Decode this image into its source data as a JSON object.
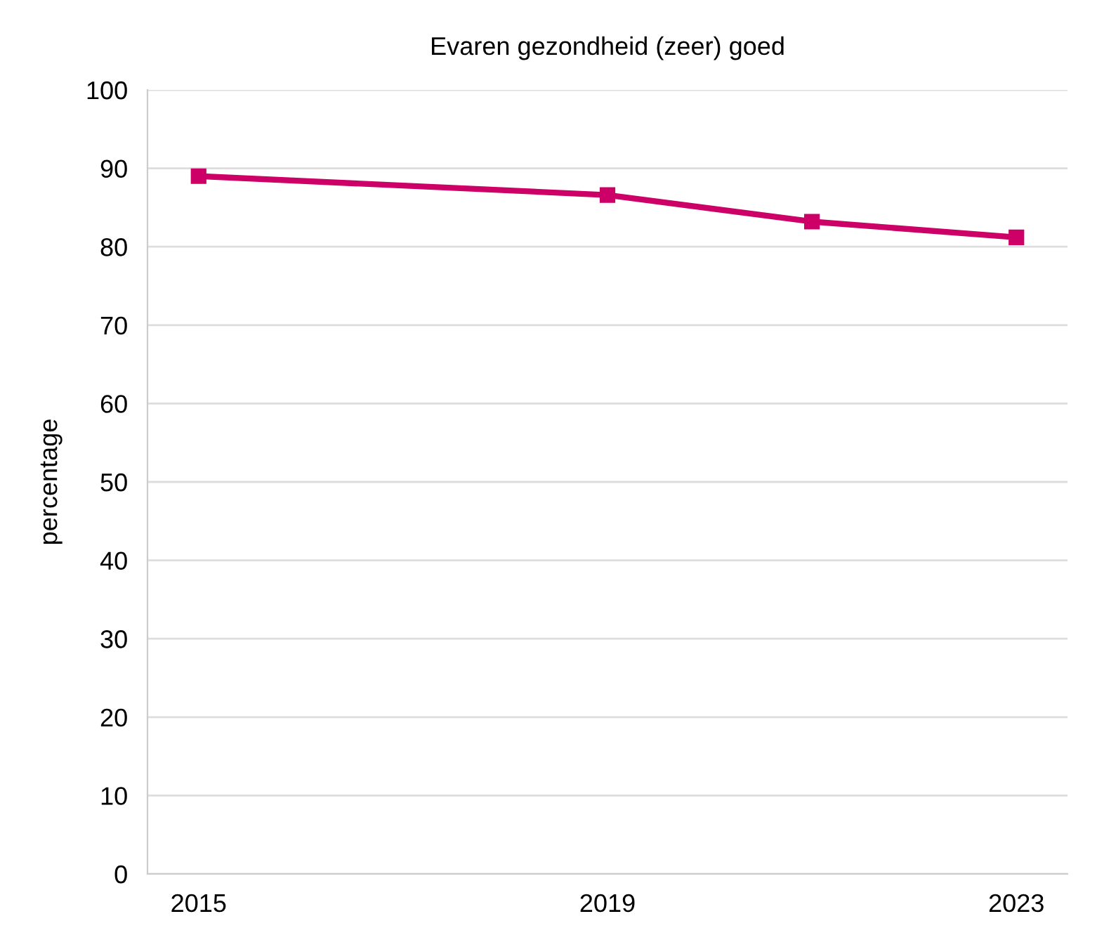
{
  "chart_data": {
    "type": "line",
    "title": "Evaren gezondheid (zeer) goed",
    "ylabel": "percentage",
    "x": [
      2015,
      2019,
      2021,
      2023
    ],
    "series": [
      {
        "color": "#cc0066",
        "values": [
          89,
          86.6,
          83.2,
          81.2
        ]
      }
    ],
    "xlim": [
      2014.5,
      2023.5
    ],
    "xticks": [
      2015,
      2019,
      2023
    ],
    "ylim": [
      0,
      100
    ],
    "yticks": [
      0,
      10,
      20,
      30,
      40,
      50,
      60,
      70,
      80,
      90,
      100
    ],
    "grid": "y",
    "legend": false,
    "marker": "square",
    "line_style": "solid"
  }
}
